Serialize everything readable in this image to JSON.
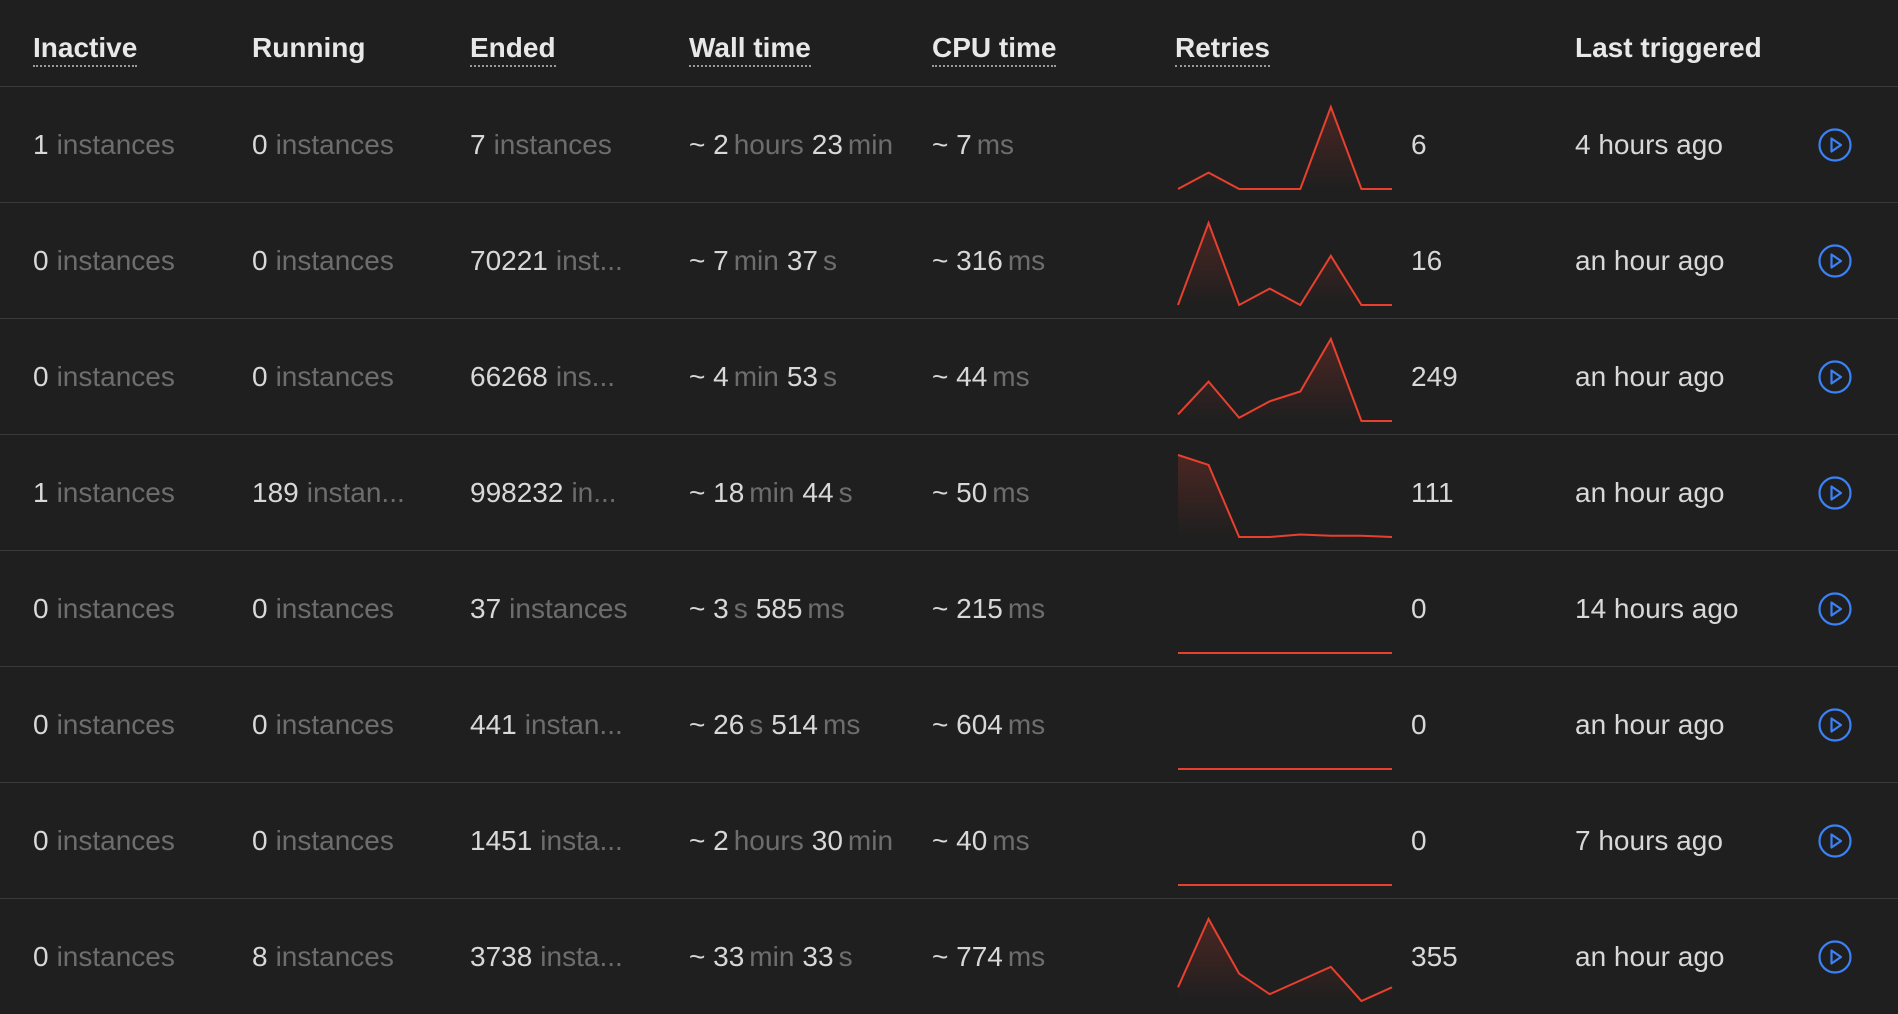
{
  "columns": {
    "inactive": "Inactive",
    "running": "Running",
    "ended": "Ended",
    "wall_time": "Wall time",
    "cpu_time": "CPU time",
    "retries": "Retries",
    "last_triggered": "Last triggered"
  },
  "colors": {
    "spark": "#e8402f",
    "play": "#3b82f6"
  },
  "rows": [
    {
      "inactive": {
        "n": "1",
        "u": "instances"
      },
      "running": {
        "n": "0",
        "u": "instances"
      },
      "ended": {
        "n": "7",
        "u": "instances"
      },
      "wall": [
        {
          "n": "~ 2",
          "u": "hours"
        },
        {
          "n": "23",
          "u": "min"
        }
      ],
      "cpu": {
        "n": "~ 7",
        "u": "ms"
      },
      "retries_series": [
        0,
        2,
        0,
        0,
        0,
        10,
        0,
        0
      ],
      "retries": "6",
      "last_triggered": "4 hours ago"
    },
    {
      "inactive": {
        "n": "0",
        "u": "instances"
      },
      "running": {
        "n": "0",
        "u": "instances"
      },
      "ended": {
        "n": "70221",
        "u": "inst..."
      },
      "wall": [
        {
          "n": "~ 7",
          "u": "min"
        },
        {
          "n": "37",
          "u": "s"
        }
      ],
      "cpu": {
        "n": "~ 316",
        "u": "ms"
      },
      "retries_series": [
        0,
        10,
        0,
        2,
        0,
        6,
        0,
        0
      ],
      "retries": "16",
      "last_triggered": "an hour ago"
    },
    {
      "inactive": {
        "n": "0",
        "u": "instances"
      },
      "running": {
        "n": "0",
        "u": "instances"
      },
      "ended": {
        "n": "66268",
        "u": "ins..."
      },
      "wall": [
        {
          "n": "~ 4",
          "u": "min"
        },
        {
          "n": "53",
          "u": "s"
        }
      ],
      "cpu": {
        "n": "~ 44",
        "u": "ms"
      },
      "retries_series": [
        2,
        12,
        1,
        6,
        9,
        25,
        0,
        0
      ],
      "retries": "249",
      "last_triggered": "an hour ago"
    },
    {
      "inactive": {
        "n": "1",
        "u": "instances"
      },
      "running": {
        "n": "189",
        "u": "instan..."
      },
      "ended": {
        "n": "998232",
        "u": "in..."
      },
      "wall": [
        {
          "n": "~ 18",
          "u": "min"
        },
        {
          "n": "44",
          "u": "s"
        }
      ],
      "cpu": {
        "n": "~ 50",
        "u": "ms"
      },
      "retries_series": [
        66,
        58,
        0,
        0,
        2,
        1,
        1,
        0
      ],
      "retries": "111",
      "last_triggered": "an hour ago"
    },
    {
      "inactive": {
        "n": "0",
        "u": "instances"
      },
      "running": {
        "n": "0",
        "u": "instances"
      },
      "ended": {
        "n": "37",
        "u": "instances"
      },
      "wall": [
        {
          "n": "~ 3",
          "u": "s"
        },
        {
          "n": "585",
          "u": "ms"
        }
      ],
      "cpu": {
        "n": "~ 215",
        "u": "ms"
      },
      "retries_series": [
        0,
        0,
        0,
        0,
        0,
        0,
        0,
        0
      ],
      "retries": "0",
      "last_triggered": "14 hours ago"
    },
    {
      "inactive": {
        "n": "0",
        "u": "instances"
      },
      "running": {
        "n": "0",
        "u": "instances"
      },
      "ended": {
        "n": "441",
        "u": "instan..."
      },
      "wall": [
        {
          "n": "~ 26",
          "u": "s"
        },
        {
          "n": "514",
          "u": "ms"
        }
      ],
      "cpu": {
        "n": "~ 604",
        "u": "ms"
      },
      "retries_series": [
        0,
        0,
        0,
        0,
        0,
        0,
        0,
        0
      ],
      "retries": "0",
      "last_triggered": "an hour ago"
    },
    {
      "inactive": {
        "n": "0",
        "u": "instances"
      },
      "running": {
        "n": "0",
        "u": "instances"
      },
      "ended": {
        "n": "1451",
        "u": "insta..."
      },
      "wall": [
        {
          "n": "~ 2",
          "u": "hours"
        },
        {
          "n": "30",
          "u": "min"
        }
      ],
      "cpu": {
        "n": "~ 40",
        "u": "ms"
      },
      "retries_series": [
        0,
        0,
        0,
        0,
        0,
        0,
        0,
        0
      ],
      "retries": "0",
      "last_triggered": "7 hours ago"
    },
    {
      "inactive": {
        "n": "0",
        "u": "instances"
      },
      "running": {
        "n": "8",
        "u": "instances"
      },
      "ended": {
        "n": "3738",
        "u": "insta..."
      },
      "wall": [
        {
          "n": "~ 33",
          "u": "min"
        },
        {
          "n": "33",
          "u": "s"
        }
      ],
      "cpu": {
        "n": "~ 774",
        "u": "ms"
      },
      "retries_series": [
        2,
        12,
        4,
        1,
        3,
        5,
        0,
        2
      ],
      "retries": "355",
      "last_triggered": "an hour ago"
    }
  ]
}
